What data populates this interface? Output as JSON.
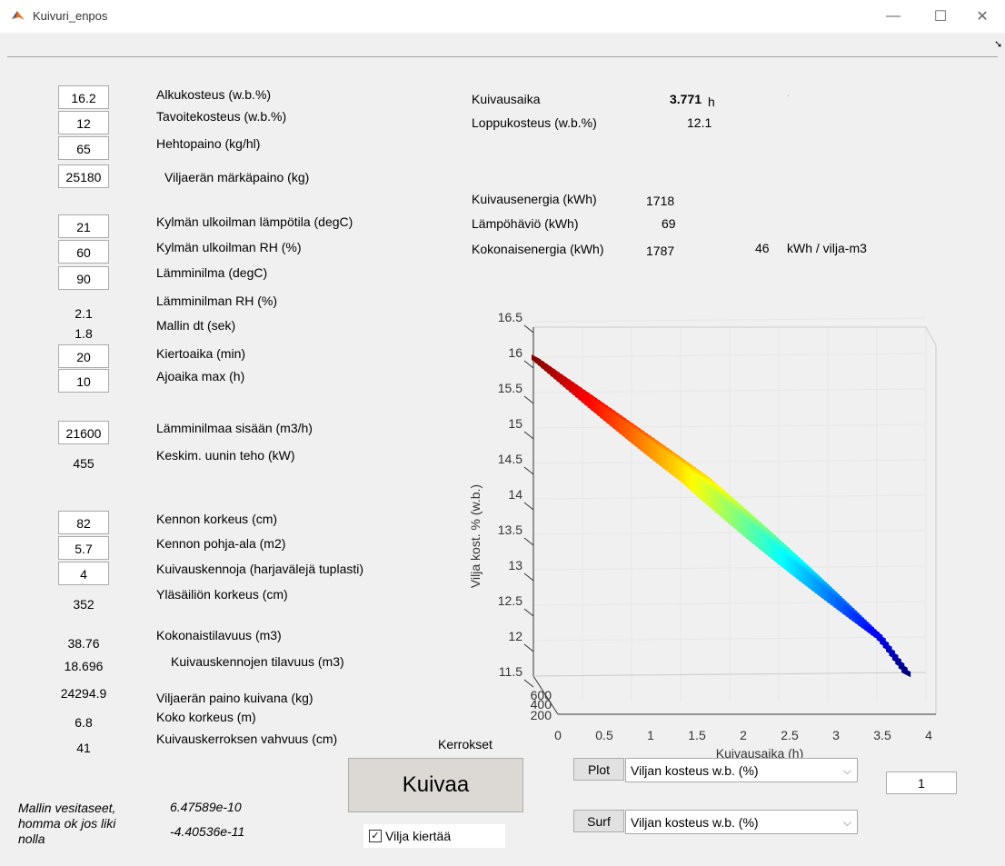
{
  "window": {
    "title": "Kuivuri_enpos"
  },
  "inputs": [
    {
      "value": "16.2",
      "label": "Alkukosteus (w.b.%)",
      "kind": "edit"
    },
    {
      "value": "12",
      "label": "Tavoitekosteus (w.b.%)",
      "kind": "edit"
    },
    {
      "value": "65",
      "label": "Hehtopaino (kg/hl)",
      "kind": "edit"
    },
    {
      "value": "25180",
      "label": "Viljaerän märkäpaino (kg)",
      "kind": "edit"
    },
    {
      "value": "21",
      "label": "Kylmän ulkoilman lämpötila (degC)",
      "kind": "edit"
    },
    {
      "value": "60",
      "label": "Kylmän ulkoilman RH (%)",
      "kind": "edit"
    },
    {
      "value": "90",
      "label": "Lämminilma (degC)",
      "kind": "edit"
    },
    {
      "value": "2.1",
      "label": "Lämminilman RH (%)",
      "kind": "text"
    },
    {
      "value": "1.8",
      "label": "Mallin dt (sek)",
      "kind": "text"
    },
    {
      "value": "20",
      "label": "Kiertoaika (min)",
      "kind": "edit"
    },
    {
      "value": "10",
      "label": "Ajoaika max (h)",
      "kind": "edit"
    },
    {
      "value": "21600",
      "label": "Lämminilmaa sisään (m3/h)",
      "kind": "edit"
    },
    {
      "value": "455",
      "label": "Keskim. uunin teho (kW)",
      "kind": "text"
    },
    {
      "value": "82",
      "label": "Kennon korkeus (cm)",
      "kind": "edit"
    },
    {
      "value": "5.7",
      "label": "Kennon pohja-ala (m2)",
      "kind": "edit"
    },
    {
      "value": "4",
      "label": "Kuivauskennoja (harjavälejä tuplasti)",
      "kind": "edit"
    },
    {
      "value": "352",
      "label": "Yläsäiliön korkeus (cm)",
      "kind": "text"
    },
    {
      "value": "38.76",
      "label": "Kokonaistilavuus (m3)",
      "kind": "text"
    },
    {
      "value": "18.696",
      "label": "Kuivauskennojen tilavuus (m3)",
      "kind": "text"
    },
    {
      "value": "24294.9",
      "label": "Viljaerän paino kuivana (kg)",
      "kind": "text"
    },
    {
      "value": "6.8",
      "label": "Koko korkeus (m)",
      "kind": "text"
    },
    {
      "value": "41",
      "label": "Kuivauskerroksen vahvuus (cm)",
      "kind": "text"
    }
  ],
  "results": {
    "kuivausaika_label": "Kuivausaika",
    "kuivausaika_value": "3.771",
    "kuivausaika_unit": "h",
    "dot": ".",
    "loppukosteus_label": "Loppukosteus (w.b.%)",
    "loppukosteus_value": "12.1",
    "energia_label": "Kuivausenergia (kWh)",
    "energia_value": "1718",
    "hukka_label": "Lämpöhäviö (kWh)",
    "hukka_value": "69",
    "kokonais_label": "Kokonaisenergia (kWh)",
    "kokonais_value": "1787",
    "per_m3_value": "46",
    "per_m3_unit": "kWh / vilja-m3"
  },
  "balance": {
    "label": "Mallin vesitaseet,\nhomma ok jos liki\nnolla",
    "value1": "6.47589e-10",
    "value2": "-4.40536e-11"
  },
  "controls": {
    "kerrokset_label": "Kerrokset",
    "kuivaa_button": "Kuivaa",
    "kierto_checkbox": "Vilja kiertää",
    "kierto_checked": true,
    "plot_button": "Plot",
    "plot_select": "Viljan kosteus w.b. (%)",
    "surf_button": "Surf",
    "surf_select": "Viljan kosteus w.b. (%)",
    "layer_value": "1"
  },
  "chart_data": {
    "type": "surface",
    "title": "",
    "xlabel": "Kuivausaika (h)",
    "ylabel": "",
    "zlabel": "Vilja kost. % (w.b.)",
    "xlim": [
      0,
      4
    ],
    "zlim": [
      11.5,
      16.5
    ],
    "x_ticks": [
      "0",
      "0.5",
      "1",
      "1.5",
      "2",
      "2.5",
      "3",
      "3.5",
      "4"
    ],
    "y_ticks": [
      "200",
      "400",
      "600"
    ],
    "z_ticks": [
      "11.5",
      "12",
      "12.5",
      "13",
      "13.5",
      "14",
      "14.5",
      "15",
      "15.5",
      "16",
      "16.5"
    ],
    "colormap": "jet",
    "x": [
      0,
      0.5,
      1,
      1.5,
      2,
      2.5,
      3,
      3.5,
      3.77
    ],
    "z": [
      16.0,
      15.5,
      15.0,
      14.5,
      13.9,
      13.3,
      12.7,
      12.1,
      11.6
    ]
  }
}
